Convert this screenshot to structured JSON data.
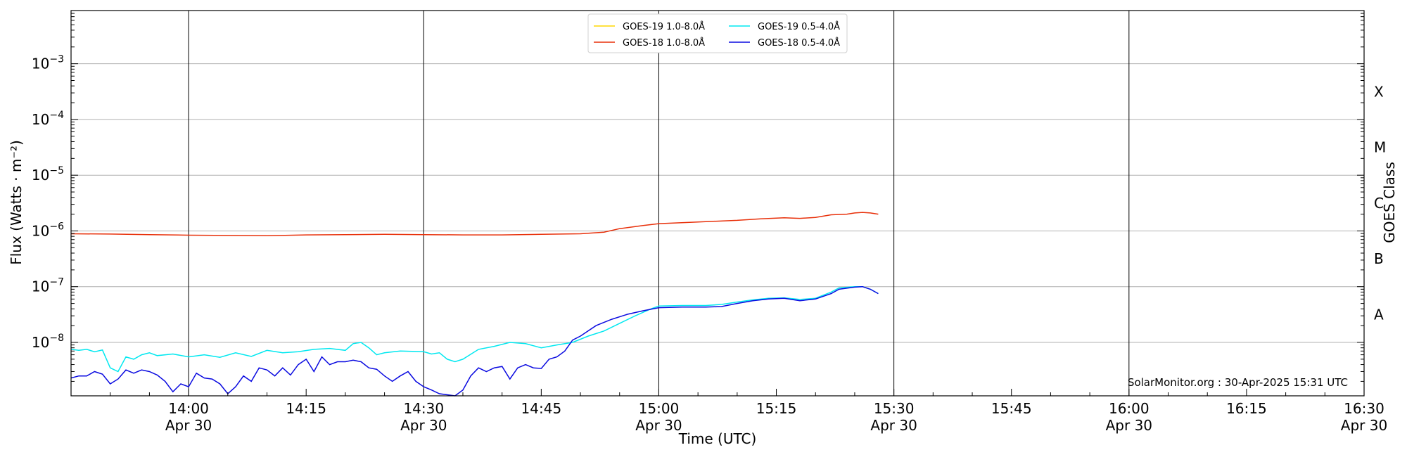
{
  "chart_data": {
    "type": "line",
    "xlabel": "Time (UTC)",
    "ylabel": "Flux (Watts · m⁻²)",
    "y2label": "GOES Class",
    "y_scale": "log",
    "ylim": [
      "1.1e-9",
      "9e-3"
    ],
    "xlim": [
      "2025-04-30 13:45",
      "2025-04-30 16:30"
    ],
    "watermark": "SolarMonitor.org : 30-Apr-2025 15:31 UTC",
    "grid": "horizontal at decades",
    "legend_position": "top-center",
    "y_ticks": [
      {
        "exp": -8,
        "label": "10",
        "sup": "−8"
      },
      {
        "exp": -7,
        "label": "10",
        "sup": "−7"
      },
      {
        "exp": -6,
        "label": "10",
        "sup": "−6"
      },
      {
        "exp": -5,
        "label": "10",
        "sup": "−5"
      },
      {
        "exp": -4,
        "label": "10",
        "sup": "−4"
      },
      {
        "exp": -3,
        "label": "10",
        "sup": "−3"
      }
    ],
    "x_ticks": [
      {
        "time": "14:00",
        "date": "Apr 30"
      },
      {
        "time": "14:15",
        "date": ""
      },
      {
        "time": "14:30",
        "date": "Apr 30"
      },
      {
        "time": "14:45",
        "date": ""
      },
      {
        "time": "15:00",
        "date": "Apr 30"
      },
      {
        "time": "15:15",
        "date": ""
      },
      {
        "time": "15:30",
        "date": "Apr 30"
      },
      {
        "time": "15:45",
        "date": ""
      },
      {
        "time": "16:00",
        "date": "Apr 30"
      },
      {
        "time": "16:15",
        "date": ""
      },
      {
        "time": "16:30",
        "date": "Apr 30"
      }
    ],
    "vertical_lines": [
      "14:00",
      "14:30",
      "15:00",
      "15:30",
      "16:00",
      "16:30"
    ],
    "goes_classes": [
      {
        "label": "A",
        "flux": "1e-8"
      },
      {
        "label": "B",
        "flux": "1e-7"
      },
      {
        "label": "C",
        "flux": "1e-6"
      },
      {
        "label": "M",
        "flux": "1e-5"
      },
      {
        "label": "X",
        "flux": "1e-4"
      }
    ],
    "series": [
      {
        "name": "GOES-19 1.0-8.0Å",
        "color": "#ffd700",
        "points": []
      },
      {
        "name": "GOES-18 1.0-8.0Å",
        "color": "#e8300a",
        "points": [
          [
            "13:45",
            8.9e-07
          ],
          [
            "13:50",
            8.8e-07
          ],
          [
            "13:55",
            8.6e-07
          ],
          [
            "14:00",
            8.4e-07
          ],
          [
            "14:05",
            8.3e-07
          ],
          [
            "14:10",
            8.2e-07
          ],
          [
            "14:15",
            8.5e-07
          ],
          [
            "14:20",
            8.6e-07
          ],
          [
            "14:25",
            8.7e-07
          ],
          [
            "14:30",
            8.6e-07
          ],
          [
            "14:35",
            8.5e-07
          ],
          [
            "14:40",
            8.5e-07
          ],
          [
            "14:45",
            8.7e-07
          ],
          [
            "14:50",
            8.9e-07
          ],
          [
            "14:53",
            9.5e-07
          ],
          [
            "14:55",
            1.1e-06
          ],
          [
            "14:58",
            1.25e-06
          ],
          [
            "15:00",
            1.35e-06
          ],
          [
            "15:05",
            1.45e-06
          ],
          [
            "15:10",
            1.55e-06
          ],
          [
            "15:13",
            1.65e-06
          ],
          [
            "15:16",
            1.72e-06
          ],
          [
            "15:18",
            1.68e-06
          ],
          [
            "15:20",
            1.75e-06
          ],
          [
            "15:22",
            1.95e-06
          ],
          [
            "15:24",
            2e-06
          ],
          [
            "15:25",
            2.1e-06
          ],
          [
            "15:26",
            2.15e-06
          ],
          [
            "15:27",
            2.1e-06
          ],
          [
            "15:28",
            2e-06
          ]
        ]
      },
      {
        "name": "GOES-19 0.5-4.0Å",
        "color": "#00e8f0",
        "points": [
          [
            "13:45",
            7.5e-09
          ],
          [
            "13:46",
            7.2e-09
          ],
          [
            "13:47",
            7.5e-09
          ],
          [
            "13:48",
            6.8e-09
          ],
          [
            "13:49",
            7.3e-09
          ],
          [
            "13:50",
            3.5e-09
          ],
          [
            "13:51",
            3e-09
          ],
          [
            "13:52",
            5.5e-09
          ],
          [
            "13:53",
            5e-09
          ],
          [
            "13:54",
            6e-09
          ],
          [
            "13:55",
            6.5e-09
          ],
          [
            "13:56",
            5.8e-09
          ],
          [
            "13:58",
            6.2e-09
          ],
          [
            "14:00",
            5.5e-09
          ],
          [
            "14:02",
            6e-09
          ],
          [
            "14:04",
            5.4e-09
          ],
          [
            "14:06",
            6.5e-09
          ],
          [
            "14:08",
            5.6e-09
          ],
          [
            "14:10",
            7.2e-09
          ],
          [
            "14:12",
            6.5e-09
          ],
          [
            "14:14",
            6.8e-09
          ],
          [
            "14:16",
            7.5e-09
          ],
          [
            "14:18",
            7.8e-09
          ],
          [
            "14:20",
            7.2e-09
          ],
          [
            "14:21",
            9.5e-09
          ],
          [
            "14:22",
            1e-08
          ],
          [
            "14:23",
            8e-09
          ],
          [
            "14:24",
            6e-09
          ],
          [
            "14:25",
            6.5e-09
          ],
          [
            "14:27",
            7e-09
          ],
          [
            "14:30",
            6.8e-09
          ],
          [
            "14:31",
            6.2e-09
          ],
          [
            "14:32",
            6.5e-09
          ],
          [
            "14:33",
            5e-09
          ],
          [
            "14:34",
            4.5e-09
          ],
          [
            "14:35",
            5e-09
          ],
          [
            "14:37",
            7.5e-09
          ],
          [
            "14:39",
            8.5e-09
          ],
          [
            "14:41",
            1e-08
          ],
          [
            "14:43",
            9.5e-09
          ],
          [
            "14:45",
            8e-09
          ],
          [
            "14:47",
            9e-09
          ],
          [
            "14:49",
            1e-08
          ],
          [
            "14:51",
            1.3e-08
          ],
          [
            "14:53",
            1.6e-08
          ],
          [
            "14:55",
            2.2e-08
          ],
          [
            "14:57",
            3e-08
          ],
          [
            "14:59",
            4e-08
          ],
          [
            "15:00",
            4.5e-08
          ],
          [
            "15:03",
            4.6e-08
          ],
          [
            "15:06",
            4.6e-08
          ],
          [
            "15:08",
            4.8e-08
          ],
          [
            "15:10",
            5.3e-08
          ],
          [
            "15:12",
            5.8e-08
          ],
          [
            "15:14",
            6.2e-08
          ],
          [
            "15:16",
            6.3e-08
          ],
          [
            "15:18",
            5.9e-08
          ],
          [
            "15:20",
            6.2e-08
          ],
          [
            "15:22",
            8e-08
          ],
          [
            "15:23",
            9.5e-08
          ],
          [
            "15:25",
            1e-07
          ],
          [
            "15:26",
            1e-07
          ],
          [
            "15:27",
            9e-08
          ],
          [
            "15:28",
            7.5e-08
          ]
        ]
      },
      {
        "name": "GOES-18 0.5-4.0Å",
        "color": "#0a0ae0",
        "points": [
          [
            "13:45",
            2.3e-09
          ],
          [
            "13:46",
            2.5e-09
          ],
          [
            "13:47",
            2.5e-09
          ],
          [
            "13:48",
            3e-09
          ],
          [
            "13:49",
            2.7e-09
          ],
          [
            "13:50",
            1.8e-09
          ],
          [
            "13:51",
            2.2e-09
          ],
          [
            "13:52",
            3.2e-09
          ],
          [
            "13:53",
            2.8e-09
          ],
          [
            "13:54",
            3.2e-09
          ],
          [
            "13:55",
            3e-09
          ],
          [
            "13:56",
            2.6e-09
          ],
          [
            "13:57",
            2e-09
          ],
          [
            "13:58",
            1.3e-09
          ],
          [
            "13:59",
            1.8e-09
          ],
          [
            "14:00",
            1.6e-09
          ],
          [
            "14:01",
            2.8e-09
          ],
          [
            "14:02",
            2.3e-09
          ],
          [
            "14:03",
            2.2e-09
          ],
          [
            "14:04",
            1.8e-09
          ],
          [
            "14:05",
            1.2e-09
          ],
          [
            "14:06",
            1.6e-09
          ],
          [
            "14:07",
            2.5e-09
          ],
          [
            "14:08",
            2e-09
          ],
          [
            "14:09",
            3.5e-09
          ],
          [
            "14:10",
            3.2e-09
          ],
          [
            "14:11",
            2.5e-09
          ],
          [
            "14:12",
            3.5e-09
          ],
          [
            "14:13",
            2.6e-09
          ],
          [
            "14:14",
            4e-09
          ],
          [
            "14:15",
            5e-09
          ],
          [
            "14:16",
            3e-09
          ],
          [
            "14:17",
            5.5e-09
          ],
          [
            "14:18",
            4e-09
          ],
          [
            "14:19",
            4.5e-09
          ],
          [
            "14:20",
            4.5e-09
          ],
          [
            "14:21",
            4.8e-09
          ],
          [
            "14:22",
            4.5e-09
          ],
          [
            "14:23",
            3.5e-09
          ],
          [
            "14:24",
            3.3e-09
          ],
          [
            "14:25",
            2.5e-09
          ],
          [
            "14:26",
            2e-09
          ],
          [
            "14:27",
            2.5e-09
          ],
          [
            "14:28",
            3e-09
          ],
          [
            "14:29",
            2e-09
          ],
          [
            "14:30",
            1.6e-09
          ],
          [
            "14:31",
            1.4e-09
          ],
          [
            "14:32",
            1.2e-09
          ],
          [
            "14:33",
            1.15e-09
          ],
          [
            "14:34",
            1.1e-09
          ],
          [
            "14:35",
            1.4e-09
          ],
          [
            "14:36",
            2.5e-09
          ],
          [
            "14:37",
            3.5e-09
          ],
          [
            "14:38",
            3e-09
          ],
          [
            "14:39",
            3.5e-09
          ],
          [
            "14:40",
            3.7e-09
          ],
          [
            "14:41",
            2.2e-09
          ],
          [
            "14:42",
            3.5e-09
          ],
          [
            "14:43",
            4e-09
          ],
          [
            "14:44",
            3.5e-09
          ],
          [
            "14:45",
            3.4e-09
          ],
          [
            "14:46",
            5e-09
          ],
          [
            "14:47",
            5.5e-09
          ],
          [
            "14:48",
            7e-09
          ],
          [
            "14:49",
            1.1e-08
          ],
          [
            "14:50",
            1.3e-08
          ],
          [
            "14:52",
            2e-08
          ],
          [
            "14:54",
            2.6e-08
          ],
          [
            "14:56",
            3.2e-08
          ],
          [
            "14:58",
            3.7e-08
          ],
          [
            "15:00",
            4.2e-08
          ],
          [
            "15:03",
            4.3e-08
          ],
          [
            "15:06",
            4.3e-08
          ],
          [
            "15:08",
            4.4e-08
          ],
          [
            "15:10",
            5e-08
          ],
          [
            "15:12",
            5.6e-08
          ],
          [
            "15:14",
            6e-08
          ],
          [
            "15:16",
            6.2e-08
          ],
          [
            "15:18",
            5.6e-08
          ],
          [
            "15:20",
            6e-08
          ],
          [
            "15:22",
            7.5e-08
          ],
          [
            "15:23",
            9e-08
          ],
          [
            "15:25",
            9.8e-08
          ],
          [
            "15:26",
            1e-07
          ],
          [
            "15:27",
            9e-08
          ],
          [
            "15:28",
            7.5e-08
          ]
        ]
      }
    ]
  }
}
